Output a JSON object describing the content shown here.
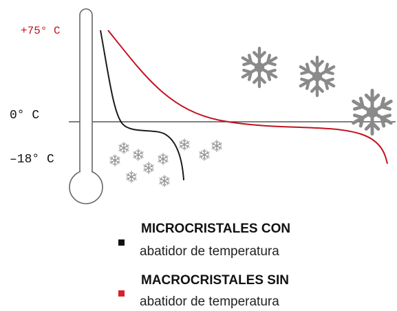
{
  "labels": {
    "top_temp": "+75° C",
    "zero_temp": "0° C",
    "low_temp": "–18° C"
  },
  "legend": [
    {
      "title": "MICROCRISTALES CON",
      "subtitle": "abatidor de temperatura",
      "color": "#111111"
    },
    {
      "title": "MACROCRISTALES SIN",
      "subtitle": "abatidor de temperatura",
      "color": "#d6212b"
    }
  ],
  "colors": {
    "red_curve": "#c1121f",
    "black_curve": "#1a1a1a",
    "axis": "#333333",
    "thermometer": "#666666",
    "snowflake": "#8a8a8a"
  },
  "icons": {
    "thermometer": "thermometer-icon",
    "snowflake": "snowflake-icon"
  }
}
